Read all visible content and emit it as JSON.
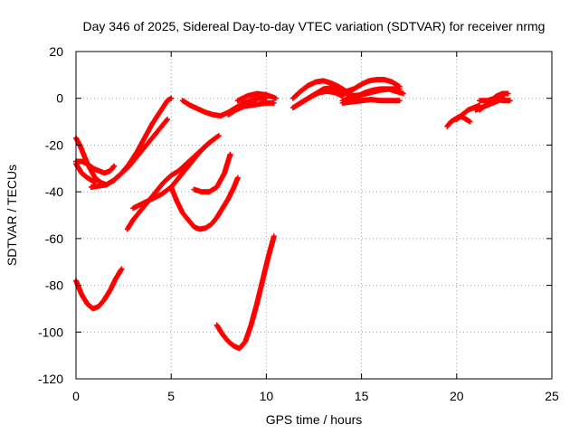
{
  "chart_data": {
    "type": "scatter",
    "title": "Day 346 of 2025, Sidereal Day-to-day VTEC variation (SDTVAR) for receiver nrmg",
    "xlabel": "GPS time / hours",
    "ylabel": "SDTVAR / TECUs",
    "xlim": [
      0,
      25
    ],
    "ylim": [
      -120,
      20
    ],
    "x_ticks": [
      0,
      5,
      10,
      15,
      20,
      25
    ],
    "x_tick_labels": [
      "0",
      "5",
      "10",
      "15",
      "20",
      "25"
    ],
    "y_ticks": [
      -120,
      -100,
      -80,
      -60,
      -40,
      -20,
      0,
      20
    ],
    "y_tick_labels": [
      "-120",
      "-100",
      "-80",
      "-60",
      "-40",
      "-20",
      "0",
      "20"
    ],
    "grid": true,
    "marker_color": "#ff0000",
    "series": [
      {
        "x": [
          0.0,
          0.3,
          0.6,
          0.9,
          1.2,
          1.5,
          1.8,
          2.0
        ],
        "y": [
          -27,
          -27,
          -28,
          -30,
          -31,
          -32,
          -31,
          -29
        ]
      },
      {
        "x": [
          0.0,
          0.2,
          0.4,
          0.6,
          0.8,
          1.0,
          1.3,
          1.6
        ],
        "y": [
          -17,
          -20,
          -24,
          -28,
          -31,
          -34,
          -36,
          -37
        ]
      },
      {
        "x": [
          0.0,
          0.15,
          0.3,
          0.45,
          0.6,
          0.8,
          1.0
        ],
        "y": [
          -28,
          -30,
          -32,
          -33,
          -34,
          -35,
          -36
        ]
      },
      {
        "x": [
          0.8,
          1.2,
          1.6,
          2.0,
          2.4,
          2.8,
          3.2,
          3.6,
          4.0,
          4.4,
          4.8,
          5.0
        ],
        "y": [
          -38,
          -37.5,
          -37,
          -35,
          -32,
          -28,
          -23,
          -17,
          -11,
          -6,
          -1,
          0
        ]
      },
      {
        "x": [
          1.6,
          2.0,
          2.4,
          2.8,
          3.2,
          3.6,
          4.0,
          4.4,
          4.8
        ],
        "y": [
          -37,
          -35,
          -32,
          -29,
          -25,
          -21,
          -17,
          -13,
          -9
        ]
      },
      {
        "x": [
          0.0,
          0.3,
          0.6,
          0.9,
          1.2,
          1.5,
          1.8,
          2.1,
          2.4
        ],
        "y": [
          -78,
          -84,
          -88,
          -90,
          -89,
          -86,
          -82,
          -77,
          -73
        ]
      },
      {
        "x": [
          2.7,
          3.0,
          3.4,
          3.8,
          4.2,
          4.6,
          5.0,
          5.4,
          5.8,
          6.2,
          6.6,
          7.0
        ],
        "y": [
          -56,
          -52,
          -48,
          -44,
          -40,
          -36,
          -33,
          -31,
          -28,
          -25,
          -22,
          -19
        ]
      },
      {
        "x": [
          3.0,
          3.5,
          4.0,
          4.5,
          5.0,
          5.5,
          6.0,
          6.5,
          7.0,
          7.5
        ],
        "y": [
          -47,
          -45,
          -43,
          -41,
          -38,
          -33,
          -28,
          -23,
          -19,
          -16
        ]
      },
      {
        "x": [
          5.0,
          5.3,
          5.6,
          5.9,
          6.2,
          6.5,
          6.8,
          7.1,
          7.4,
          7.7,
          8.0,
          8.3,
          8.5
        ],
        "y": [
          -38,
          -44,
          -49,
          -52,
          -55,
          -56,
          -55.5,
          -54,
          -51,
          -47,
          -43,
          -38,
          -34
        ]
      },
      {
        "x": [
          6.2,
          6.6,
          7.0,
          7.4,
          7.8,
          8.1
        ],
        "y": [
          -39,
          -40,
          -40,
          -38,
          -32,
          -24
        ]
      },
      {
        "x": [
          5.6,
          6.0,
          6.4,
          6.8,
          7.2,
          7.6,
          8.0,
          8.4,
          8.8,
          9.2,
          9.6,
          10.0
        ],
        "y": [
          -1,
          -3,
          -4.5,
          -6,
          -7,
          -7.5,
          -6,
          -4,
          -2,
          -1,
          0,
          0
        ]
      },
      {
        "x": [
          7.4,
          7.7,
          8.0,
          8.3,
          8.6,
          8.9,
          9.2,
          9.5,
          9.8,
          10.1,
          10.4
        ],
        "y": [
          -97,
          -101,
          -104,
          -106,
          -107,
          -104,
          -97,
          -88,
          -78,
          -68,
          -59
        ]
      },
      {
        "x": [
          8.0,
          8.4,
          8.8,
          9.2,
          9.6,
          10.0,
          10.4
        ],
        "y": [
          -7,
          -5,
          -3.5,
          -3,
          -2.5,
          -2,
          -2
        ]
      },
      {
        "x": [
          8.5,
          9.0,
          9.5,
          10.0,
          10.5
        ],
        "y": [
          -1,
          1,
          2,
          1.5,
          0
        ]
      },
      {
        "x": [
          11.4,
          11.8,
          12.2,
          12.6,
          13.0,
          13.4,
          13.8,
          14.2,
          14.6
        ],
        "y": [
          0,
          3,
          5.5,
          7,
          7.5,
          6.5,
          5,
          3,
          1
        ]
      },
      {
        "x": [
          11.4,
          11.8,
          12.2,
          12.6,
          13.0,
          13.4,
          13.8,
          14.2,
          14.6,
          15.0
        ],
        "y": [
          -4,
          -2,
          0,
          2,
          4,
          4.5,
          3.5,
          2,
          0,
          -1
        ]
      },
      {
        "x": [
          11.6,
          12.0,
          12.4,
          12.8,
          13.2,
          13.6,
          14.0
        ],
        "y": [
          -3,
          -1,
          1,
          2.5,
          3,
          2.5,
          1
        ]
      },
      {
        "x": [
          13.8,
          14.2,
          14.6,
          15.0,
          15.4,
          15.8,
          16.2,
          16.6,
          17.0
        ],
        "y": [
          2,
          3,
          4,
          6,
          7.5,
          8,
          8,
          7,
          5
        ]
      },
      {
        "x": [
          14.0,
          14.4,
          14.8,
          15.2,
          15.6,
          16.0,
          16.4,
          16.8,
          17.2
        ],
        "y": [
          -1,
          0,
          1,
          2.5,
          3.5,
          4,
          4,
          3,
          2
        ]
      },
      {
        "x": [
          14.0,
          14.5,
          15.0,
          15.5,
          16.0,
          16.5,
          17.0
        ],
        "y": [
          -2,
          -1.5,
          -1,
          -0.5,
          -1,
          -1,
          -1
        ]
      },
      {
        "x": [
          14.5,
          15.0,
          15.5,
          16.0,
          16.5,
          17.0
        ],
        "y": [
          1,
          1.5,
          2.5,
          3.5,
          4,
          4
        ]
      },
      {
        "x": [
          19.5,
          19.7,
          19.9,
          20.1,
          20.3,
          20.5,
          20.7
        ],
        "y": [
          -12,
          -10,
          -9,
          -8,
          -8,
          -9,
          -10
        ]
      },
      {
        "x": [
          20.0,
          20.3,
          20.6,
          20.9,
          21.2
        ],
        "y": [
          -9,
          -7,
          -5,
          -4,
          -3
        ]
      },
      {
        "x": [
          21.2,
          21.5,
          21.8,
          22.1,
          22.4,
          22.7
        ],
        "y": [
          -5,
          -3,
          -1,
          1,
          2,
          2
        ]
      },
      {
        "x": [
          21.2,
          21.6,
          22.0,
          22.4,
          22.8
        ],
        "y": [
          -1,
          -1,
          0,
          -1,
          -1
        ]
      },
      {
        "x": [
          21.0,
          21.3,
          21.6,
          21.9,
          22.2,
          22.5
        ],
        "y": [
          -5,
          -4,
          -3,
          -2,
          -1,
          0
        ]
      }
    ]
  }
}
